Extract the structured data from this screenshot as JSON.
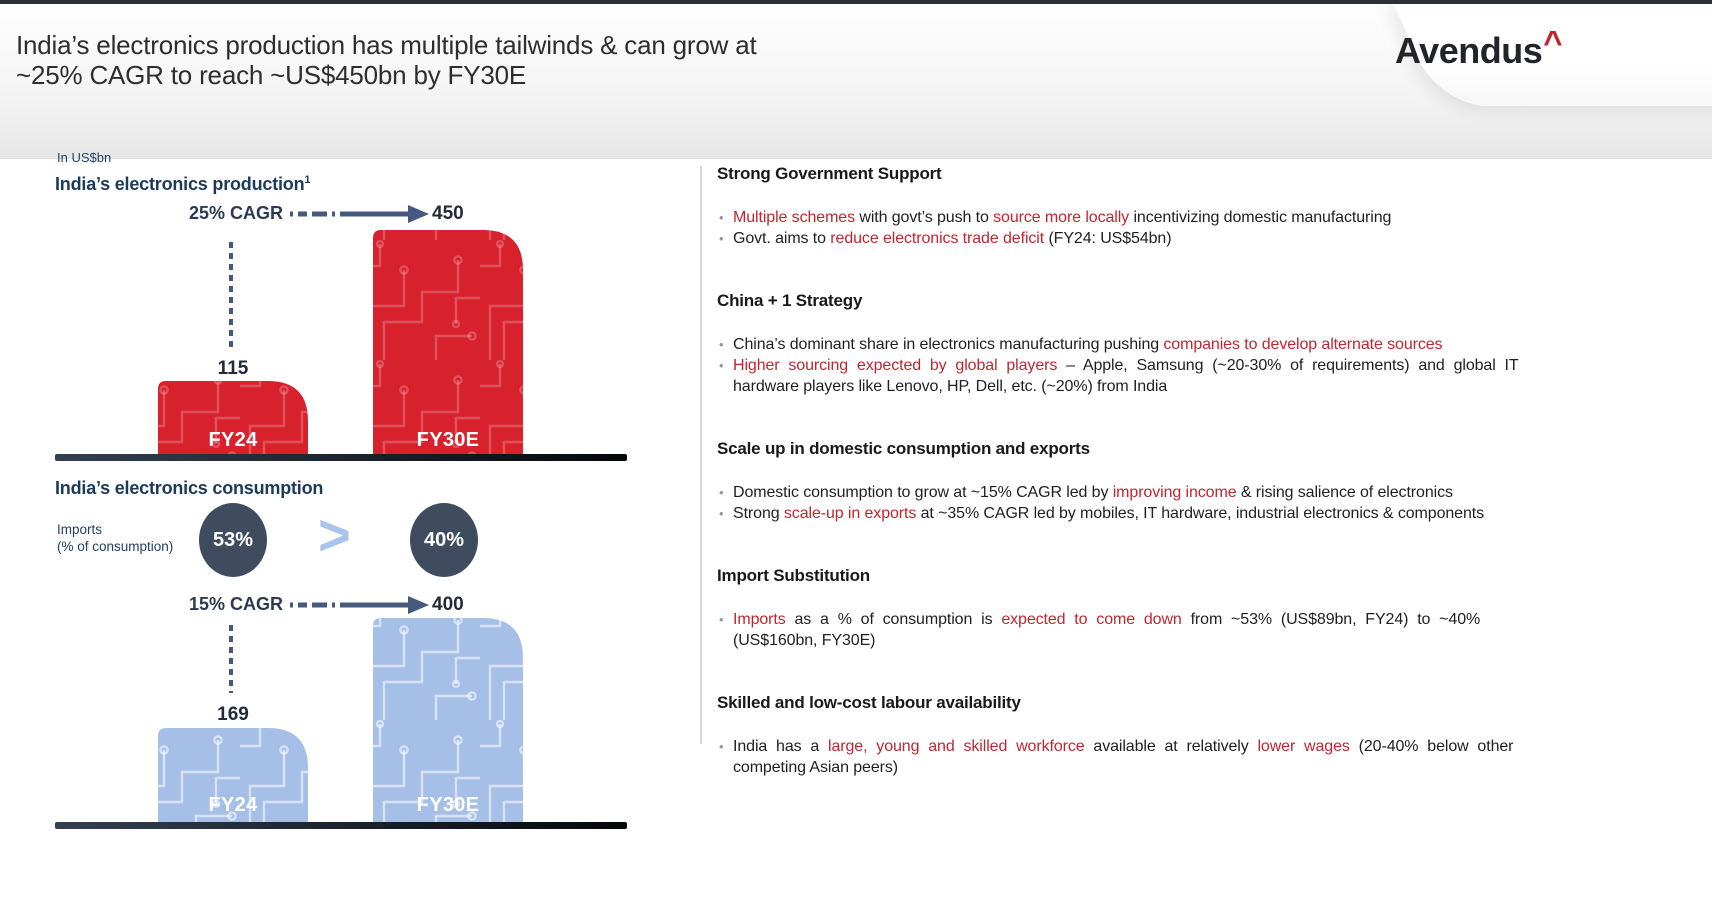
{
  "header": {
    "title_line1": "India’s electronics production has multiple tailwinds & can grow at",
    "title_line2": "~25% CAGR to reach ~US$450bn by FY30E",
    "brand": {
      "name": "Avendus",
      "mark": "^"
    }
  },
  "charts": {
    "units_label": "In US$bn",
    "production": {
      "title": "India’s electronics production",
      "footnote_marker": "1",
      "cagr_label": "25% CAGR",
      "start_value": "115",
      "end_value": "450",
      "categories": [
        "FY24",
        "FY30E"
      ]
    },
    "consumption": {
      "title": "India’s electronics consumption",
      "imports_label_line1": "Imports",
      "imports_label_line2": "(% of consumption)",
      "import_share_fy24": "53%",
      "comparator": ">",
      "import_share_fy30e": "40%",
      "cagr_label": "15% CAGR",
      "start_value": "169",
      "end_value": "400",
      "categories": [
        "FY24",
        "FY30E"
      ]
    }
  },
  "chart_data": [
    {
      "type": "bar",
      "title": "India’s electronics production",
      "footnote": "1",
      "units": "US$bn",
      "categories": [
        "FY24",
        "FY30E"
      ],
      "values": [
        115,
        450
      ],
      "cagr": "25% CAGR",
      "bar_color": "#d7212d"
    },
    {
      "type": "bar",
      "title": "India’s electronics consumption",
      "units": "US$bn",
      "categories": [
        "FY24",
        "FY30E"
      ],
      "values": [
        169,
        400
      ],
      "cagr": "15% CAGR",
      "bar_color": "#a6bfe6",
      "import_share_pct": {
        "FY24": 53,
        "FY30E": 40
      }
    }
  ],
  "sections": [
    {
      "heading": "Strong Government Support",
      "bullets": [
        {
          "lines": [
            {
              "spread": false,
              "segments": [
                {
                  "text": "Multiple schemes",
                  "red": true
                },
                {
                  "text": " with govt’s push to ",
                  "red": false
                },
                {
                  "text": "source more locally",
                  "red": true
                },
                {
                  "text": " incentivizing domestic manufacturing",
                  "red": false
                }
              ]
            }
          ]
        },
        {
          "lines": [
            {
              "spread": false,
              "segments": [
                {
                  "text": "Govt. aims to ",
                  "red": false
                },
                {
                  "text": "reduce electronics trade deficit",
                  "red": true
                },
                {
                  "text": " (FY24: US$54bn)",
                  "red": false
                }
              ]
            }
          ]
        }
      ]
    },
    {
      "heading": "China + 1 Strategy",
      "bullets": [
        {
          "lines": [
            {
              "spread": false,
              "segments": [
                {
                  "text": "China’s dominant share in electronics manufacturing pushing ",
                  "red": false
                },
                {
                  "text": "companies to develop alternate sources",
                  "red": true
                }
              ]
            }
          ]
        },
        {
          "lines": [
            {
              "spread": true,
              "segments": [
                {
                  "text": "Higher sourcing expected by global players",
                  "red": true
                },
                {
                  "text": " – Apple, Samsung (~20-30% of requirements) and global IT",
                  "red": false
                }
              ]
            },
            {
              "spread": false,
              "segments": [
                {
                  "text": "hardware players like Lenovo, HP, Dell, etc. (~20%) from India",
                  "red": false
                }
              ]
            }
          ]
        }
      ]
    },
    {
      "heading": "Scale up in domestic consumption and exports",
      "bullets": [
        {
          "lines": [
            {
              "spread": false,
              "segments": [
                {
                  "text": "Domestic consumption to grow at ~15% CAGR led by ",
                  "red": false
                },
                {
                  "text": "improving income",
                  "red": true
                },
                {
                  "text": " & rising salience of electronics",
                  "red": false
                }
              ]
            }
          ]
        },
        {
          "lines": [
            {
              "spread": false,
              "segments": [
                {
                  "text": "Strong ",
                  "red": false
                },
                {
                  "text": "scale-up in exports",
                  "red": true
                },
                {
                  "text": " at ~35% CAGR led by mobiles, IT hardware, industrial electronics & components",
                  "red": false
                }
              ]
            }
          ]
        }
      ]
    },
    {
      "heading": "Import Substitution",
      "bullets": [
        {
          "lines": [
            {
              "spread": true,
              "segments": [
                {
                  "text": "Imports",
                  "red": true
                },
                {
                  "text": " as a % of consumption is ",
                  "red": false
                },
                {
                  "text": "expected to come down",
                  "red": true
                },
                {
                  "text": " from ~53% (US$89bn, FY24) to ~40%",
                  "red": false
                }
              ]
            },
            {
              "spread": false,
              "segments": [
                {
                  "text": "(US$160bn, FY30E)",
                  "red": false
                }
              ]
            }
          ]
        }
      ]
    },
    {
      "heading": "Skilled and low-cost labour availability",
      "bullets": [
        {
          "lines": [
            {
              "spread": true,
              "segments": [
                {
                  "text": "India has a ",
                  "red": false
                },
                {
                  "text": "large, young and skilled workforce",
                  "red": true
                },
                {
                  "text": " available at relatively ",
                  "red": false
                },
                {
                  "text": "lower wages",
                  "red": true
                },
                {
                  "text": " (20-40% below other",
                  "red": false
                }
              ]
            },
            {
              "spread": false,
              "segments": [
                {
                  "text": "competing Asian peers)",
                  "red": false
                }
              ]
            }
          ]
        }
      ]
    }
  ],
  "colors": {
    "accent_red": "#c0262f",
    "logo_caret_red": "#d2232a",
    "bar_red": "#d7212d",
    "bar_blue": "#a6bfe6",
    "navy_heading": "#1b3a5c",
    "circle_fill": "#3f4c60",
    "arrow_steel": "#44597c",
    "comparator_blue": "#a9c3ea"
  }
}
